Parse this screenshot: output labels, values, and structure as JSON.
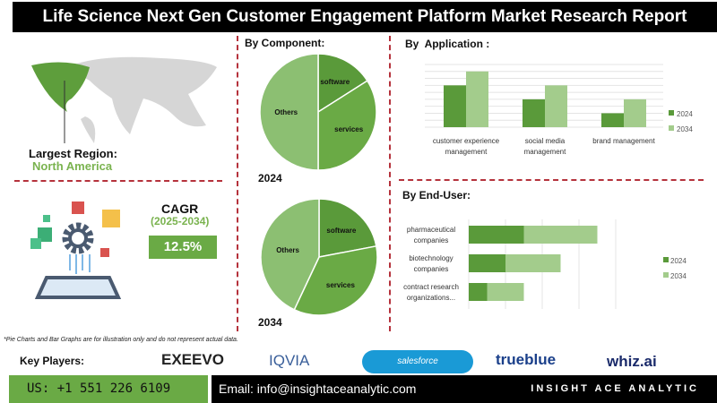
{
  "title": "Life Science Next Gen Customer Engagement Platform Market Research Report",
  "region": {
    "label": "Largest Region:",
    "value": "North America"
  },
  "cagr": {
    "label": "CAGR",
    "period": "(2025-2034)",
    "value": "12.5%"
  },
  "component": {
    "heading": "By Component:"
  },
  "application": {
    "heading": "By  Application :"
  },
  "enduser": {
    "heading": "By End-User:"
  },
  "note": "*Pie Charts and Bar Graphs are for illustration only and do not represent actual data.",
  "key_players": {
    "label": "Key Players:",
    "logos": [
      "EXEEVO",
      "IQVIA",
      "salesforce",
      "trueblue",
      "whiz.ai"
    ]
  },
  "footer": {
    "phone": "US: +1 551 226 6109",
    "email": "Email: info@insightaceanalytic.com",
    "brand": "INSIGHT ACE ANALYTIC"
  },
  "colors": {
    "dark": "#5a9a3a",
    "mid": "#6aaa45",
    "light": "#a3cc8c",
    "others": "#8cbf72"
  },
  "chart_data": [
    {
      "type": "pie",
      "title": "2024",
      "labels": [
        "software",
        "services",
        "Others"
      ],
      "values": [
        16,
        34,
        50
      ]
    },
    {
      "type": "pie",
      "title": "2034",
      "labels": [
        "software",
        "services",
        "Others"
      ],
      "values": [
        22,
        35,
        43
      ]
    },
    {
      "type": "bar",
      "title": "By Application",
      "categories": [
        "customer experience management",
        "social media management",
        "brand management"
      ],
      "series": [
        {
          "name": "2024",
          "values": [
            6,
            4,
            2
          ]
        },
        {
          "name": "2034",
          "values": [
            8,
            6,
            4
          ]
        }
      ],
      "ylim": [
        0,
        9
      ],
      "legend": "right"
    },
    {
      "type": "bar",
      "orientation": "horizontal",
      "stacked": true,
      "title": "By End-User",
      "categories": [
        "pharmaceutical companies",
        "biotechnology companies",
        "contract research organizations..."
      ],
      "series": [
        {
          "name": "2024",
          "values": [
            1.5,
            1.0,
            0.5
          ]
        },
        {
          "name": "2034",
          "values": [
            2.0,
            1.5,
            1.0
          ]
        }
      ],
      "xlim": [
        0,
        4
      ],
      "legend": "right"
    }
  ]
}
